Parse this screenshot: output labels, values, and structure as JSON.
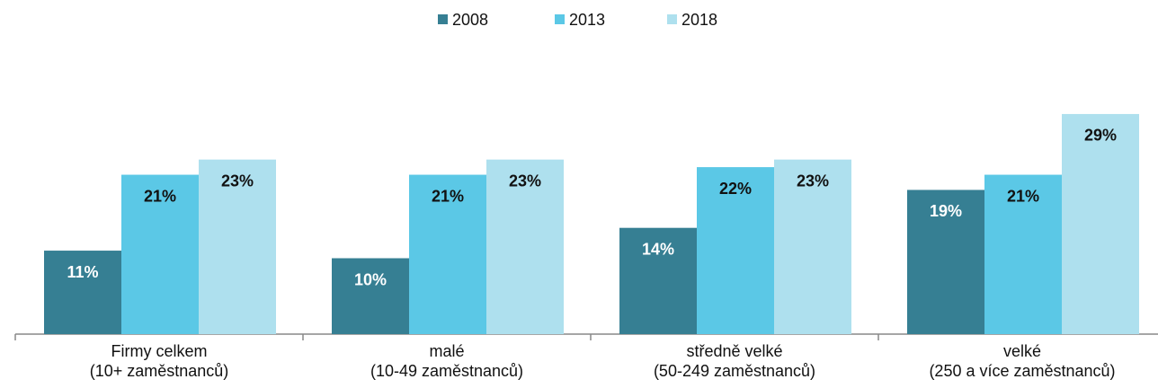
{
  "chart_data": {
    "type": "bar",
    "categories": [
      "Firmy celkem\n(10+ zaměstnanců)",
      "malé\n(10-49 zaměstnanců)",
      "středně velké\n(50-249 zaměstnanců)",
      "velké\n(250 a více zaměstnanců)"
    ],
    "series": [
      {
        "name": "2008",
        "color": "#367f93",
        "values": [
          11,
          10,
          14,
          19
        ],
        "value_labels": [
          "11%",
          "10%",
          "14%",
          "19%"
        ]
      },
      {
        "name": "2013",
        "color": "#5bc8e6",
        "values": [
          21,
          21,
          22,
          21
        ],
        "value_labels": [
          "21%",
          "21%",
          "22%",
          "21%"
        ]
      },
      {
        "name": "2018",
        "color": "#aee0ee",
        "values": [
          23,
          23,
          23,
          29
        ],
        "value_labels": [
          "23%",
          "23%",
          "23%",
          "29%"
        ]
      }
    ],
    "legend": "top"
  }
}
